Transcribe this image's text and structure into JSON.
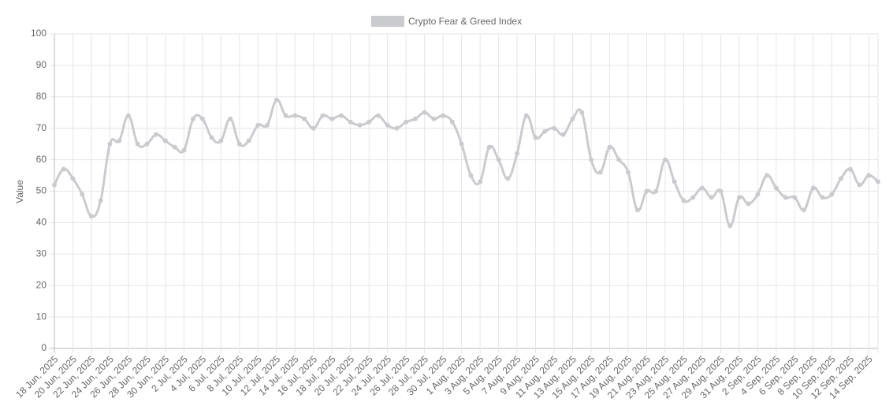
{
  "chart_data": {
    "type": "line",
    "y_label": "Value",
    "categories": [
      "18 Jun, 2025",
      null,
      "20 Jun, 2025",
      null,
      "22 Jun, 2025",
      null,
      "24 Jun, 2025",
      null,
      "26 Jun, 2025",
      null,
      "28 Jun, 2025",
      null,
      "30 Jun, 2025",
      null,
      "2 Jul, 2025",
      null,
      "4 Jul, 2025",
      null,
      "6 Jul, 2025",
      null,
      "8 Jul, 2025",
      null,
      "10 Jul, 2025",
      null,
      "12 Jul, 2025",
      null,
      "14 Jul, 2025",
      null,
      "16 Jul, 2025",
      null,
      "18 Jul, 2025",
      null,
      "20 Jul, 2025",
      null,
      "22 Jul, 2025",
      null,
      "24 Jul, 2025",
      null,
      "26 Jul, 2025",
      null,
      "28 Jul, 2025",
      null,
      "30 Jul, 2025",
      null,
      "1 Aug, 2025",
      null,
      "3 Aug, 2025",
      null,
      "5 Aug, 2025",
      null,
      "7 Aug, 2025",
      null,
      "9 Aug, 2025",
      null,
      "11 Aug, 2025",
      null,
      "13 Aug, 2025",
      null,
      "15 Aug, 2025",
      null,
      "17 Aug, 2025",
      null,
      "19 Aug, 2025",
      null,
      "21 Aug, 2025",
      null,
      "23 Aug, 2025",
      null,
      "25 Aug, 2025",
      null,
      "27 Aug, 2025",
      null,
      "29 Aug, 2025",
      null,
      "31 Aug, 2025",
      null,
      "2 Sep, 2025",
      null,
      "4 Sep, 2025",
      null,
      "6 Sep, 2025",
      null,
      "8 Sep, 2025",
      null,
      "10 Sep, 2025",
      null,
      "12 Sep, 2025",
      null,
      "14 Sep, 2025",
      null
    ],
    "series": [
      {
        "name": "Crypto Fear & Greed Index",
        "color": "#c9cbcf",
        "values": [
          52,
          57,
          54,
          49,
          42,
          47,
          65,
          66,
          74,
          65,
          65,
          68,
          66,
          64,
          63,
          73,
          73,
          67,
          66,
          73,
          65,
          66,
          71,
          71,
          79,
          74,
          74,
          73,
          70,
          74,
          73,
          74,
          72,
          71,
          72,
          74,
          71,
          70,
          72,
          73,
          75,
          73,
          74,
          72,
          65,
          55,
          53,
          64,
          60,
          54,
          62,
          74,
          67,
          69,
          70,
          68,
          73,
          75,
          60,
          56,
          64,
          60,
          56,
          44,
          50,
          50,
          60,
          53,
          47,
          48,
          51,
          48,
          50,
          39,
          48,
          46,
          49,
          55,
          51,
          48,
          48,
          44,
          51,
          48,
          49,
          54,
          57,
          52,
          55,
          53
        ]
      }
    ],
    "ylim": [
      0,
      100
    ],
    "yticks": [
      0,
      10,
      20,
      30,
      40,
      50,
      60,
      70,
      80,
      90,
      100
    ],
    "grid": true,
    "legend": "top"
  }
}
